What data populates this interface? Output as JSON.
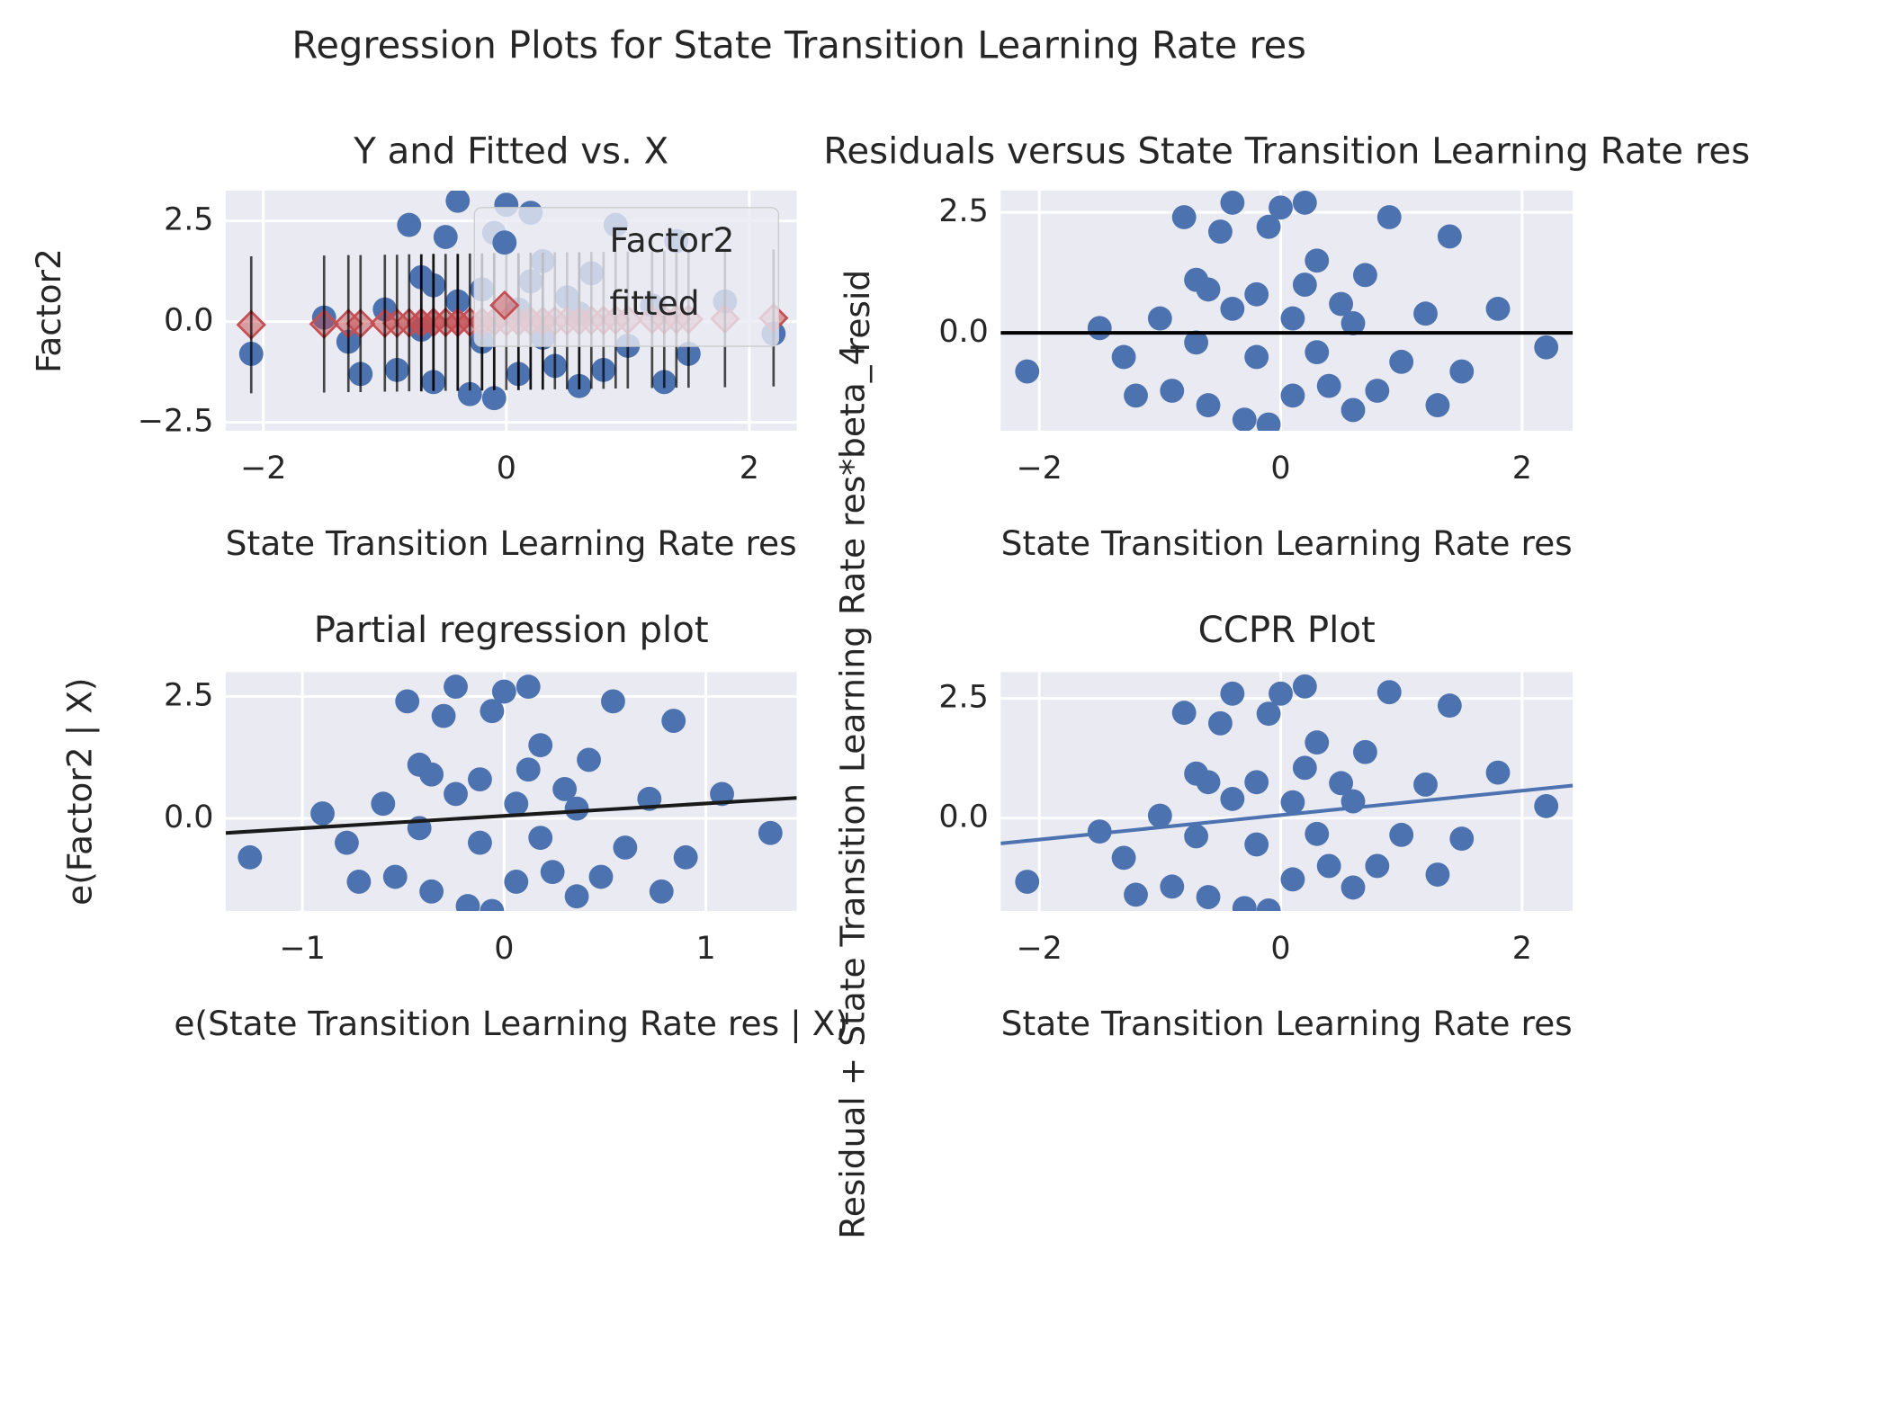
{
  "title": "Regression Plots for State Transition Learning Rate res",
  "chart_data": [
    {
      "type": "scatter",
      "title": "Y and Fitted vs. X",
      "xlabel": "State Transition Learning Rate res",
      "ylabel": "Factor2",
      "xlim": [
        -2.31,
        2.39
      ],
      "ylim": [
        -2.71,
        3.25
      ],
      "xticks": [
        {
          "value": -2,
          "label": "−2"
        },
        0,
        2
      ],
      "yticks": [
        {
          "value": 2.5,
          "label": "2.5"
        },
        {
          "value": 0,
          "label": "0.0"
        },
        {
          "value": -2.5,
          "label": "−2.5"
        }
      ],
      "grid": true,
      "legend": "best",
      "series": [
        {
          "name": "Factor2",
          "color": "#4c72b0",
          "marker": "o",
          "x": [
            -2.1,
            -1.5,
            -1.3,
            -1.2,
            -1.0,
            -0.8,
            -0.7,
            -0.6,
            -0.5,
            -0.4,
            -0.3,
            -0.2,
            -0.1,
            0.0,
            0.1,
            0.2,
            0.3,
            0.4,
            0.5,
            0.6,
            0.7,
            0.9,
            1.0,
            1.2,
            1.3,
            1.4,
            1.5,
            1.8,
            2.2,
            -0.9,
            -0.2,
            0.1,
            -0.4,
            0.3,
            0.6,
            -0.7,
            0.8,
            -0.1,
            0.2,
            -0.6
          ],
          "values": [
            -0.8,
            0.1,
            -0.5,
            -1.3,
            0.3,
            2.4,
            1.1,
            -1.5,
            2.1,
            3.0,
            -1.8,
            0.8,
            2.2,
            2.9,
            -1.3,
            2.7,
            1.5,
            -1.1,
            0.6,
            -1.6,
            1.2,
            2.4,
            -0.6,
            0.4,
            -1.5,
            2.0,
            -0.8,
            0.5,
            -0.3,
            -1.2,
            -0.5,
            0.3,
            0.5,
            -0.4,
            0.2,
            -0.2,
            -1.2,
            -1.9,
            1.0,
            0.9
          ]
        },
        {
          "name": "fitted",
          "color": "#c44e52",
          "marker": "D",
          "x": [
            -2.1,
            -1.5,
            -1.3,
            -1.2,
            -1.0,
            -0.8,
            -0.7,
            -0.6,
            -0.5,
            -0.4,
            -0.3,
            -0.2,
            -0.1,
            0.0,
            0.1,
            0.2,
            0.3,
            0.4,
            0.5,
            0.6,
            0.7,
            0.9,
            1.0,
            1.2,
            1.3,
            1.4,
            1.5,
            1.8,
            2.2,
            -0.9,
            -0.2,
            0.1,
            -0.4,
            0.3,
            0.6,
            -0.7,
            0.8,
            -0.1,
            0.2,
            -0.6
          ],
          "values": [
            -0.08,
            -0.06,
            -0.05,
            -0.05,
            -0.04,
            -0.03,
            -0.03,
            -0.02,
            -0.02,
            -0.02,
            -0.01,
            -0.01,
            0,
            0,
            0,
            0.01,
            0.01,
            0.02,
            0.02,
            0.02,
            0.03,
            0.04,
            0.04,
            0.05,
            0.05,
            0.06,
            0.06,
            0.07,
            0.09,
            -0.04,
            -0.01,
            0,
            -0.02,
            0.01,
            0.02,
            -0.03,
            0.03,
            0,
            0.01,
            -0.02
          ],
          "errors": [
            1.7,
            1.7,
            1.7,
            1.7,
            1.7,
            1.7,
            1.7,
            1.7,
            1.7,
            1.7,
            1.7,
            1.7,
            1.7,
            1.7,
            1.7,
            1.7,
            1.7,
            1.7,
            1.7,
            1.7,
            1.7,
            1.7,
            1.7,
            1.7,
            1.7,
            1.7,
            1.7,
            1.7,
            1.7,
            1.7,
            1.7,
            1.7,
            1.7,
            1.7,
            1.7,
            1.7,
            1.7,
            1.7,
            1.7,
            1.7
          ]
        }
      ]
    },
    {
      "type": "scatter",
      "title": "Residuals versus State Transition Learning Rate res",
      "xlabel": "State Transition Learning Rate res",
      "ylabel": "resid",
      "xlim": [
        -2.32,
        2.42
      ],
      "ylim": [
        -2.03,
        2.95
      ],
      "xticks": [
        {
          "value": -2,
          "label": "−2"
        },
        0,
        2
      ],
      "yticks": [
        {
          "value": 2.5,
          "label": "2.5"
        },
        {
          "value": 0,
          "label": "0.0"
        }
      ],
      "grid": true,
      "series": [
        {
          "color": "#4c72b0",
          "marker": "o",
          "x": [
            -2.1,
            -1.5,
            -1.3,
            -1.2,
            -1.0,
            -0.8,
            -0.7,
            -0.6,
            -0.5,
            -0.4,
            -0.3,
            -0.2,
            -0.1,
            0.0,
            0.1,
            0.2,
            0.3,
            0.4,
            0.5,
            0.6,
            0.7,
            0.9,
            1.0,
            1.2,
            1.3,
            1.4,
            1.5,
            1.8,
            2.2,
            -0.9,
            -0.2,
            0.1,
            -0.4,
            0.3,
            0.6,
            -0.7,
            0.8,
            -0.1,
            0.2,
            -0.6
          ],
          "values": [
            -0.8,
            0.1,
            -0.5,
            -1.3,
            0.3,
            2.4,
            1.1,
            -1.5,
            2.1,
            2.7,
            -1.8,
            0.8,
            2.2,
            2.6,
            -1.3,
            2.7,
            1.5,
            -1.1,
            0.6,
            -1.6,
            1.2,
            2.4,
            -0.6,
            0.4,
            -1.5,
            2.0,
            -0.8,
            0.5,
            -0.3,
            -1.2,
            -0.5,
            0.3,
            0.5,
            -0.4,
            0.2,
            -0.2,
            -1.2,
            -1.9,
            1.0,
            0.9
          ]
        },
        {
          "color": "#000000",
          "marker": "line",
          "x": [
            -2.32,
            2.42
          ],
          "values": [
            0,
            0
          ]
        }
      ]
    },
    {
      "type": "scatter",
      "title": "Partial regression plot",
      "xlabel": "e(State Transition Learning Rate res | X)",
      "ylabel": "e(Factor2 | X)",
      "xlim": [
        -1.38,
        1.45
      ],
      "ylim": [
        -1.9,
        3.0
      ],
      "xticks": [
        {
          "value": -1,
          "label": "−1"
        },
        0,
        1
      ],
      "yticks": [
        {
          "value": 2.5,
          "label": "2.5"
        },
        {
          "value": 0,
          "label": "0.0"
        }
      ],
      "grid": true,
      "series": [
        {
          "color": "#4c72b0",
          "marker": "o",
          "x": [
            -1.26,
            -0.9,
            -0.78,
            -0.72,
            -0.6,
            -0.48,
            -0.42,
            -0.36,
            -0.3,
            -0.24,
            -0.18,
            -0.12,
            -0.06,
            0,
            0.06,
            0.12,
            0.18,
            0.24,
            0.3,
            0.36,
            0.42,
            0.54,
            0.6,
            0.72,
            0.78,
            0.84,
            0.9,
            1.08,
            1.32,
            -0.54,
            -0.12,
            0.06,
            -0.24,
            0.18,
            0.36,
            -0.42,
            0.48,
            -0.06,
            0.12,
            -0.36
          ],
          "values": [
            -0.8,
            0.1,
            -0.5,
            -1.3,
            0.3,
            2.4,
            1.1,
            -1.5,
            2.1,
            2.7,
            -1.8,
            0.8,
            2.2,
            2.6,
            -1.3,
            2.7,
            1.5,
            -1.1,
            0.6,
            -1.6,
            1.2,
            2.4,
            -0.6,
            0.4,
            -1.5,
            2.0,
            -0.8,
            0.5,
            -0.3,
            -1.2,
            -0.5,
            0.3,
            0.5,
            -0.4,
            0.2,
            -0.2,
            -1.2,
            -1.9,
            1.0,
            0.9
          ]
        },
        {
          "color": "#1a1a1a",
          "marker": "line",
          "x": [
            -1.38,
            1.45
          ],
          "values": [
            -0.3,
            0.42
          ]
        }
      ]
    },
    {
      "type": "scatter",
      "title": "CCPR Plot",
      "xlabel": "State Transition Learning Rate res",
      "ylabel": "Residual + State Transition Learning Rate res*beta_4",
      "xlim": [
        -2.32,
        2.42
      ],
      "ylim": [
        -1.94,
        3.05
      ],
      "xticks": [
        {
          "value": -2,
          "label": "−2"
        },
        0,
        2
      ],
      "yticks": [
        {
          "value": 2.5,
          "label": "2.5"
        },
        {
          "value": 0,
          "label": "0.0"
        }
      ],
      "grid": true,
      "series": [
        {
          "color": "#4c72b0",
          "marker": "o",
          "x": [
            -2.1,
            -1.5,
            -1.3,
            -1.2,
            -1.0,
            -0.8,
            -0.7,
            -0.6,
            -0.5,
            -0.4,
            -0.3,
            -0.2,
            -0.1,
            0.0,
            0.1,
            0.2,
            0.3,
            0.4,
            0.5,
            0.6,
            0.7,
            0.9,
            1.0,
            1.2,
            1.3,
            1.4,
            1.5,
            1.8,
            2.2,
            -0.9,
            -0.2,
            0.1,
            -0.4,
            0.3,
            0.6,
            -0.7,
            0.8,
            -0.1,
            0.2,
            -0.6
          ],
          "values": [
            -1.33,
            -0.28,
            -0.83,
            -1.6,
            0.05,
            2.2,
            0.93,
            -1.65,
            1.98,
            2.6,
            -1.88,
            0.75,
            2.18,
            2.6,
            -1.28,
            2.75,
            1.58,
            -1.0,
            0.73,
            -1.45,
            1.38,
            2.63,
            -0.35,
            0.7,
            -1.18,
            2.35,
            -0.43,
            0.95,
            0.25,
            -1.43,
            -0.55,
            0.33,
            0.4,
            -0.33,
            0.35,
            -0.38,
            -1.0,
            -1.93,
            1.05,
            0.75
          ]
        },
        {
          "color": "#4c72b0",
          "marker": "line",
          "x": [
            -2.32,
            2.42
          ],
          "values": [
            -0.53,
            0.68
          ]
        }
      ]
    }
  ]
}
